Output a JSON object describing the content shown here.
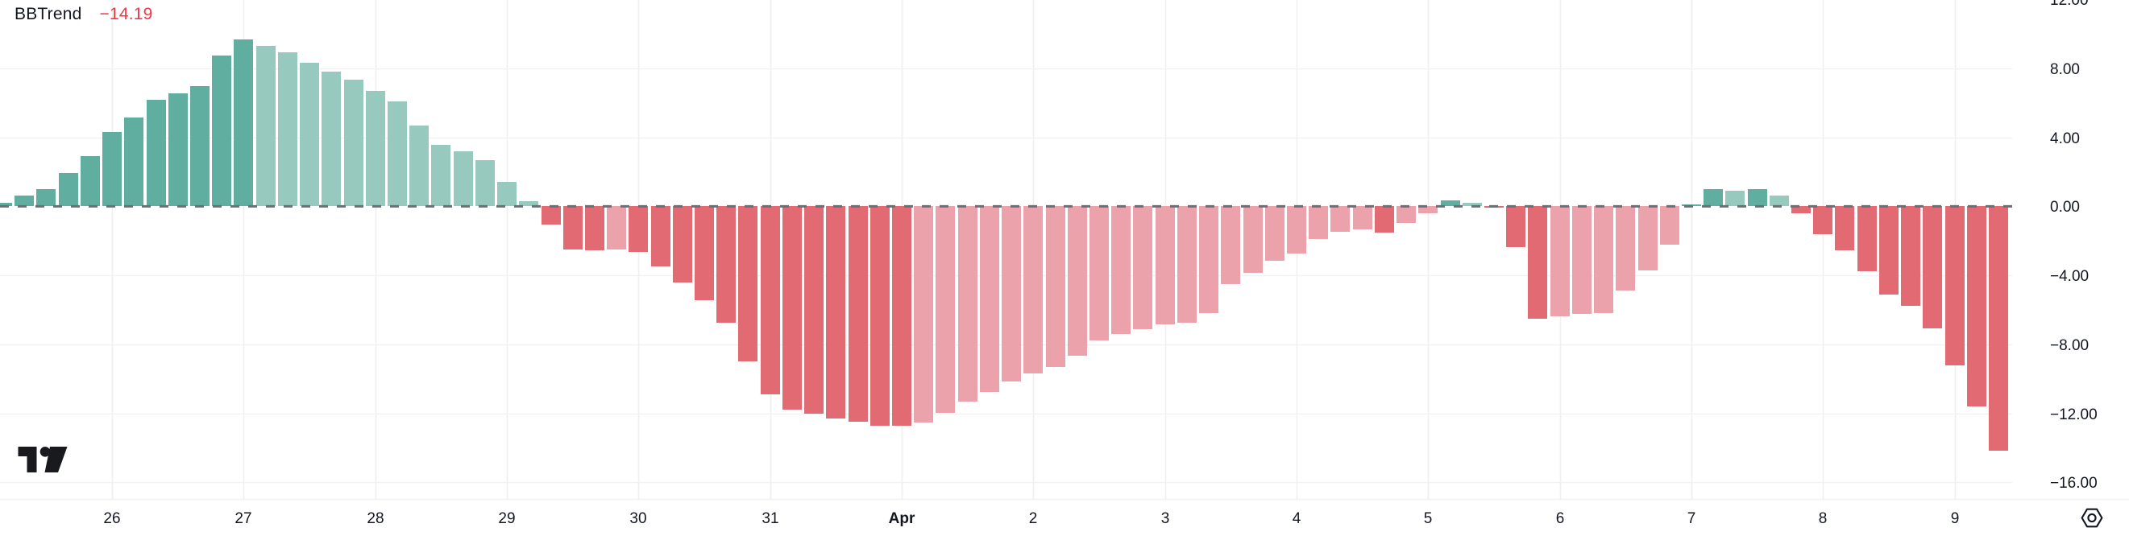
{
  "indicator": {
    "name": "BBTrend",
    "value": "−14.19",
    "name_color": "#131722",
    "value_color": "#F23645"
  },
  "price_axis": {
    "tick_labels": [
      "12.00",
      "8.00",
      "4.00",
      "0.00",
      "−4.00",
      "−8.00",
      "−12.00",
      "−16.00"
    ],
    "tick_values": [
      12,
      8,
      4,
      0,
      -4,
      -8,
      -12,
      -16
    ]
  },
  "time_axis": {
    "labels": [
      "26",
      "27",
      "28",
      "29",
      "30",
      "31",
      "Apr",
      "2",
      "3",
      "4",
      "5",
      "6",
      "7",
      "8",
      "9"
    ],
    "bold_labels": [
      "Apr"
    ]
  },
  "chart_data": {
    "type": "bar",
    "title": "BBTrend",
    "current_value": -14.19,
    "ylim": [
      -16.9,
      12.0
    ],
    "grid": true,
    "legend_position": "top-left",
    "y_ticks": [
      12,
      8,
      4,
      0,
      -4,
      -8,
      -12,
      -16
    ],
    "x_tick_labels": [
      "26",
      "27",
      "28",
      "29",
      "30",
      "31",
      "Apr",
      "2",
      "3",
      "4",
      "5",
      "6",
      "7",
      "8",
      "9"
    ],
    "bars_per_day": 6,
    "first_label_bar_index": 5,
    "values": [
      0.18,
      0.6,
      1.0,
      1.9,
      2.9,
      4.28,
      5.15,
      6.18,
      6.55,
      6.97,
      8.74,
      9.67,
      9.3,
      8.93,
      8.32,
      7.81,
      7.34,
      6.69,
      6.08,
      4.65,
      3.54,
      3.16,
      2.64,
      1.4,
      0.28,
      -1.09,
      -2.52,
      -2.56,
      -2.52,
      -2.64,
      -3.5,
      -4.44,
      -5.48,
      -6.77,
      -9.02,
      -10.92,
      -11.79,
      -12.05,
      -12.32,
      -12.49,
      -12.72,
      -12.75,
      -12.57,
      -11.97,
      -11.32,
      -10.76,
      -10.19,
      -9.72,
      -9.33,
      -8.68,
      -7.78,
      -7.44,
      -7.16,
      -6.88,
      -6.77,
      -6.22,
      -4.51,
      -3.86,
      -3.15,
      -2.76,
      -1.92,
      -1.5,
      -1.34,
      -1.53,
      -1.0,
      -0.43,
      0.34,
      0.18,
      -0.08,
      -2.37,
      -6.54,
      -6.38,
      -6.26,
      -6.19,
      -4.9,
      -3.74,
      -2.23,
      0.06,
      0.96,
      0.89,
      0.96,
      0.61,
      -0.4,
      -1.61,
      -2.57,
      -3.77,
      -5.14,
      -5.79,
      -7.08,
      -9.25,
      -11.63,
      -14.19
    ],
    "colors": {
      "positive_rising": "#5FAEA0",
      "positive_falling": "#97C9BF",
      "negative_falling": "#E16A73",
      "negative_rising": "#ECA2AA"
    },
    "zero_line": {
      "style": "dashed",
      "color": "#696E78"
    },
    "grid_color": "#F0F2F5",
    "text_color": "#131722"
  }
}
